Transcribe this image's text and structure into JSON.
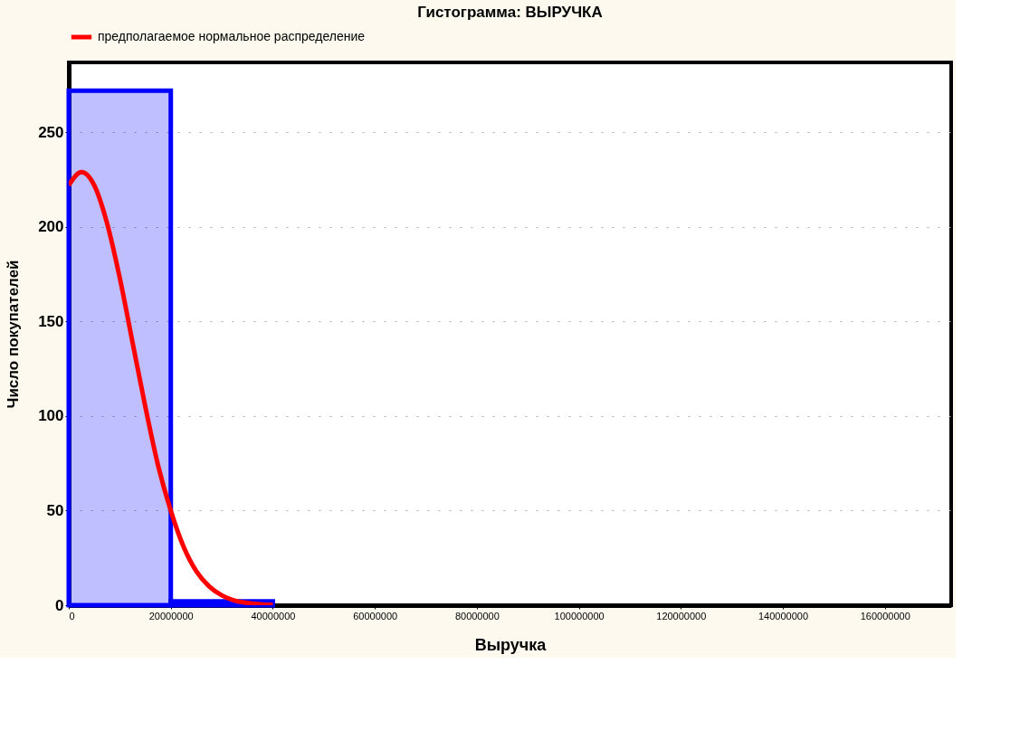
{
  "chart_data": {
    "type": "histogram",
    "title": "Гистограмма: ВЫРУЧКА",
    "xlabel": "Выручка",
    "ylabel": "Число покупателей",
    "bins": [
      0,
      20000000,
      40000000
    ],
    "values": [
      272,
      2
    ],
    "color": "#0000ff",
    "series": [
      {
        "name": "предполагаемое нормальное распределение",
        "type": "line",
        "color": "#ff0000",
        "x": [
          0,
          2500000,
          5000000,
          7500000,
          10000000,
          12500000,
          15000000,
          17500000,
          20000000,
          22500000,
          25000000,
          27500000,
          30000000,
          32500000,
          35000000,
          37500000,
          40000000
        ],
        "values": [
          222,
          229,
          222,
          202,
          173,
          139,
          105,
          74,
          50,
          31,
          18,
          10,
          5.2,
          2.5,
          1.2,
          0.5,
          0.2
        ]
      }
    ],
    "xlim": [
      0,
      173000000
    ],
    "xticks": [
      0,
      20000000,
      40000000,
      60000000,
      80000000,
      100000000,
      120000000,
      140000000,
      160000000
    ],
    "ylim": [
      0,
      287
    ],
    "yticks": [
      0,
      50,
      100,
      150,
      200,
      250
    ],
    "grid": "y",
    "legend": "top"
  }
}
